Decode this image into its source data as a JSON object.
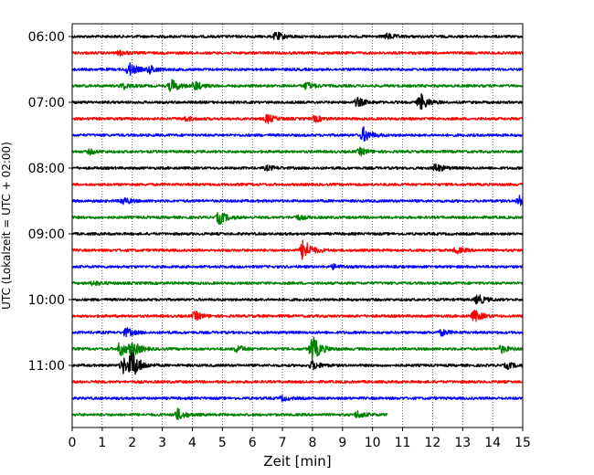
{
  "chart_data": {
    "type": "line",
    "title": "",
    "xlabel": "Zeit  [min]",
    "ylabel": "UTC (Lokalzeit = UTC + 02:00)",
    "xlim": [
      0,
      15
    ],
    "x_ticks": [
      "0",
      "1",
      "2",
      "3",
      "4",
      "5",
      "6",
      "7",
      "8",
      "9",
      "10",
      "11",
      "12",
      "13",
      "14",
      "15"
    ],
    "y_tick_labels": [
      "06:00",
      "07:00",
      "08:00",
      "09:00",
      "10:00",
      "11:00"
    ],
    "grid": "vertical dotted",
    "trace_interval_min": 15,
    "trace_start": "06:00",
    "color_cycle": [
      "#000000",
      "#ff0000",
      "#0000ff",
      "#008000"
    ],
    "series": [
      {
        "start": "06:00",
        "color": "#000000",
        "events": [
          {
            "t": 6.8,
            "amp": 0.6
          },
          {
            "t": 10.5,
            "amp": 0.4
          }
        ]
      },
      {
        "start": "06:15",
        "color": "#ff0000",
        "events": [
          {
            "t": 1.6,
            "amp": 0.3
          }
        ]
      },
      {
        "start": "06:30",
        "color": "#0000ff",
        "events": [
          {
            "t": 1.9,
            "amp": 0.9
          },
          {
            "t": 2.6,
            "amp": 0.5
          }
        ]
      },
      {
        "start": "06:45",
        "color": "#008000",
        "events": [
          {
            "t": 1.7,
            "amp": 0.4
          },
          {
            "t": 3.3,
            "amp": 0.9
          },
          {
            "t": 4.1,
            "amp": 0.6
          },
          {
            "t": 7.8,
            "amp": 0.5
          }
        ]
      },
      {
        "start": "07:00",
        "color": "#000000",
        "events": [
          {
            "t": 9.5,
            "amp": 0.6
          },
          {
            "t": 11.6,
            "amp": 1.2
          }
        ]
      },
      {
        "start": "07:15",
        "color": "#ff0000",
        "events": [
          {
            "t": 3.8,
            "amp": 0.3
          },
          {
            "t": 6.5,
            "amp": 0.6
          },
          {
            "t": 8.1,
            "amp": 0.4
          }
        ]
      },
      {
        "start": "07:30",
        "color": "#0000ff",
        "events": [
          {
            "t": 9.7,
            "amp": 1.0
          }
        ]
      },
      {
        "start": "07:45",
        "color": "#008000",
        "events": [
          {
            "t": 0.6,
            "amp": 0.3
          },
          {
            "t": 9.6,
            "amp": 0.5
          }
        ]
      },
      {
        "start": "08:00",
        "color": "#000000",
        "events": [
          {
            "t": 6.5,
            "amp": 0.3
          },
          {
            "t": 12.1,
            "amp": 0.6
          }
        ]
      },
      {
        "start": "08:15",
        "color": "#ff0000",
        "events": []
      },
      {
        "start": "08:30",
        "color": "#0000ff",
        "events": [
          {
            "t": 1.7,
            "amp": 0.5
          },
          {
            "t": 14.9,
            "amp": 0.8
          }
        ]
      },
      {
        "start": "08:45",
        "color": "#008000",
        "events": [
          {
            "t": 4.9,
            "amp": 0.9
          },
          {
            "t": 7.5,
            "amp": 0.3
          }
        ]
      },
      {
        "start": "09:00",
        "color": "#000000",
        "events": []
      },
      {
        "start": "09:15",
        "color": "#ff0000",
        "events": [
          {
            "t": 7.7,
            "amp": 1.6
          },
          {
            "t": 12.8,
            "amp": 0.4
          }
        ]
      },
      {
        "start": "09:30",
        "color": "#0000ff",
        "events": [
          {
            "t": 8.7,
            "amp": 0.3
          }
        ]
      },
      {
        "start": "09:45",
        "color": "#008000",
        "events": [
          {
            "t": 0.7,
            "amp": 0.3
          }
        ]
      },
      {
        "start": "10:00",
        "color": "#000000",
        "events": [
          {
            "t": 13.5,
            "amp": 0.7
          }
        ]
      },
      {
        "start": "10:15",
        "color": "#ff0000",
        "events": [
          {
            "t": 4.1,
            "amp": 0.6
          },
          {
            "t": 13.4,
            "amp": 0.8
          }
        ]
      },
      {
        "start": "10:30",
        "color": "#0000ff",
        "events": [
          {
            "t": 1.8,
            "amp": 0.6
          },
          {
            "t": 12.3,
            "amp": 0.4
          }
        ]
      },
      {
        "start": "10:45",
        "color": "#008000",
        "events": [
          {
            "t": 1.6,
            "amp": 1.0
          },
          {
            "t": 2.0,
            "amp": 1.0
          },
          {
            "t": 5.5,
            "amp": 0.5
          },
          {
            "t": 8.0,
            "amp": 1.8
          },
          {
            "t": 14.3,
            "amp": 0.5
          }
        ]
      },
      {
        "start": "11:00",
        "color": "#000000",
        "events": [
          {
            "t": 1.7,
            "amp": 1.1
          },
          {
            "t": 2.0,
            "amp": 1.8
          },
          {
            "t": 8.0,
            "amp": 0.6
          },
          {
            "t": 14.5,
            "amp": 0.4
          }
        ]
      },
      {
        "start": "11:15",
        "color": "#ff0000",
        "events": []
      },
      {
        "start": "11:30",
        "color": "#0000ff",
        "events": [
          {
            "t": 7.0,
            "amp": 0.3
          }
        ]
      },
      {
        "start": "11:45",
        "color": "#008000",
        "events": [
          {
            "t": 3.5,
            "amp": 0.8
          },
          {
            "t": 9.5,
            "amp": 0.5
          }
        ],
        "end": 10.5
      }
    ]
  }
}
